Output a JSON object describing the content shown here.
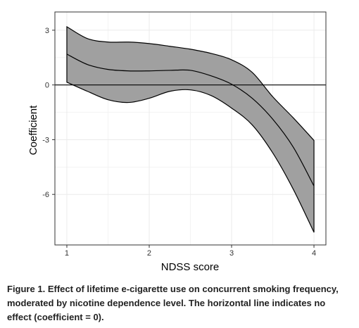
{
  "chart_data": {
    "type": "band-line",
    "x_label": "NDSS score",
    "y_label": "Coefficient",
    "x": [
      1,
      1.25,
      1.5,
      1.75,
      2,
      2.25,
      2.5,
      2.75,
      3,
      3.25,
      3.5,
      3.75,
      4
    ],
    "values": [
      1.69,
      1.12,
      0.85,
      0.77,
      0.77,
      0.8,
      0.8,
      0.5,
      0.04,
      -0.73,
      -1.88,
      -3.42,
      -5.54
    ],
    "upper": [
      3.19,
      2.54,
      2.35,
      2.35,
      2.27,
      2.12,
      1.96,
      1.73,
      1.38,
      0.69,
      -0.65,
      -1.81,
      -3.04
    ],
    "lower": [
      0.15,
      -0.35,
      -0.81,
      -0.96,
      -0.73,
      -0.35,
      -0.27,
      -0.58,
      -1.27,
      -2.19,
      -3.73,
      -5.73,
      -8.08
    ],
    "color": "#000000",
    "band_color": "#a0a0a0",
    "hline": 0,
    "xlim": [
      0.855,
      4.145
    ],
    "ylim": [
      -8.77,
      4.0
    ],
    "xticks": [
      1,
      2,
      3,
      4
    ],
    "yticks": [
      -6,
      -3,
      0,
      3
    ],
    "grid": true
  },
  "caption": {
    "label": "Figure 1.",
    "text": "Effect of lifetime e-cigarette use on concurrent smoking frequency, moderated by nicotine dependence level. The horizontal line indicates no effect (coefficient = 0)."
  }
}
